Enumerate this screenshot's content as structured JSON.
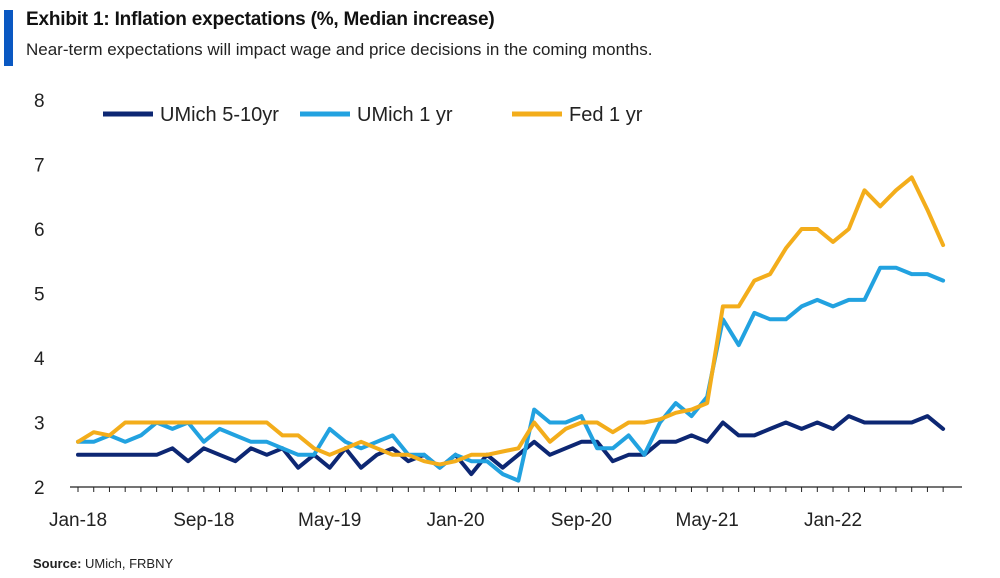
{
  "header": {
    "title": "Exhibit 1: Inflation expectations (%, Median increase)",
    "subtitle": "Near-term  expectations will impact wage and price decisions in the coming months."
  },
  "source": {
    "label": "Source:",
    "text": "UMich,  FRBNY"
  },
  "colors": {
    "accent": "#0a58c2",
    "umich_5_10": "#0d2773",
    "umich_1": "#22a2e0",
    "fed_1": "#f3ad1b"
  },
  "chart_data": {
    "type": "line",
    "title": "",
    "xlabel": "",
    "ylabel": "",
    "ylim": [
      2,
      8
    ],
    "yticks": [
      "2",
      "3",
      "4",
      "5",
      "6",
      "7",
      "8"
    ],
    "xticks": [
      "Jan-18",
      "Sep-18",
      "May-19",
      "Jan-20",
      "Sep-20",
      "May-21",
      "Jan-22"
    ],
    "grid": false,
    "legend": "top-left",
    "x_start": "Jan-18",
    "x": [
      "Jan-18",
      "Feb-18",
      "Mar-18",
      "Apr-18",
      "May-18",
      "Jun-18",
      "Jul-18",
      "Aug-18",
      "Sep-18",
      "Oct-18",
      "Nov-18",
      "Dec-18",
      "Jan-19",
      "Feb-19",
      "Mar-19",
      "Apr-19",
      "May-19",
      "Jun-19",
      "Jul-19",
      "Aug-19",
      "Sep-19",
      "Oct-19",
      "Nov-19",
      "Dec-19",
      "Jan-20",
      "Feb-20",
      "Mar-20",
      "Apr-20",
      "May-20",
      "Jun-20",
      "Jul-20",
      "Aug-20",
      "Sep-20",
      "Oct-20",
      "Nov-20",
      "Dec-20",
      "Jan-21",
      "Feb-21",
      "Mar-21",
      "Apr-21",
      "May-21",
      "Jun-21",
      "Jul-21",
      "Aug-21",
      "Sep-21",
      "Oct-21",
      "Nov-21",
      "Dec-21",
      "Jan-22",
      "Feb-22",
      "Mar-22",
      "Apr-22",
      "May-22",
      "Jun-22",
      "Jul-22",
      "Aug-22"
    ],
    "series": [
      {
        "name": "UMich 5-10yr",
        "values": [
          2.5,
          2.5,
          2.5,
          2.5,
          2.5,
          2.5,
          2.6,
          2.4,
          2.6,
          2.5,
          2.4,
          2.6,
          2.5,
          2.6,
          2.3,
          2.5,
          2.3,
          2.6,
          2.3,
          2.5,
          2.6,
          2.4,
          2.5,
          2.3,
          2.5,
          2.2,
          2.5,
          2.3,
          2.5,
          2.7,
          2.5,
          2.6,
          2.7,
          2.7,
          2.4,
          2.5,
          2.5,
          2.7,
          2.7,
          2.8,
          2.7,
          3.0,
          2.8,
          2.8,
          2.9,
          3.0,
          2.9,
          3.0,
          2.9,
          3.1,
          3.0,
          3.0,
          3.0,
          3.0,
          3.1,
          2.9
        ]
      },
      {
        "name": "UMich 1 yr",
        "values": [
          2.7,
          2.7,
          2.8,
          2.7,
          2.8,
          3.0,
          2.9,
          3.0,
          2.7,
          2.9,
          2.8,
          2.7,
          2.7,
          2.6,
          2.5,
          2.5,
          2.9,
          2.7,
          2.6,
          2.7,
          2.8,
          2.5,
          2.5,
          2.3,
          2.5,
          2.4,
          2.4,
          2.2,
          2.1,
          3.2,
          3.0,
          3.0,
          3.1,
          2.6,
          2.6,
          2.8,
          2.5,
          3.0,
          3.3,
          3.1,
          3.4,
          4.6,
          4.2,
          4.7,
          4.6,
          4.6,
          4.8,
          4.9,
          4.8,
          4.9,
          4.9,
          5.4,
          5.4,
          5.3,
          5.3,
          5.2
        ]
      },
      {
        "name": "Fed 1 yr",
        "values": [
          2.7,
          2.85,
          2.8,
          3.0,
          3.0,
          3.0,
          3.0,
          3.0,
          3.0,
          3.0,
          3.0,
          3.0,
          3.0,
          2.8,
          2.8,
          2.6,
          2.5,
          2.6,
          2.7,
          2.6,
          2.5,
          2.5,
          2.4,
          2.35,
          2.4,
          2.5,
          2.5,
          2.55,
          2.6,
          3.0,
          2.7,
          2.9,
          3.0,
          3.0,
          2.85,
          3.0,
          3.0,
          3.05,
          3.15,
          3.2,
          3.3,
          4.8,
          4.8,
          5.2,
          5.3,
          5.7,
          6.0,
          6.0,
          5.8,
          6.0,
          6.6,
          6.35,
          6.6,
          6.8,
          6.3,
          5.75
        ]
      }
    ]
  }
}
